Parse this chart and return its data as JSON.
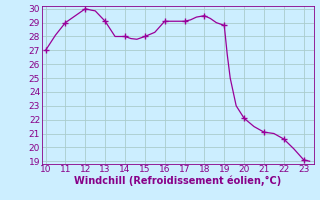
{
  "x": [
    10,
    10.5,
    11,
    11.5,
    12,
    12.3,
    12.5,
    13,
    13.5,
    14,
    14.3,
    14.6,
    15,
    15.5,
    16,
    16.5,
    17,
    17.3,
    17.6,
    18,
    18.15,
    18.3,
    18.6,
    19,
    19.15,
    19.3,
    19.6,
    20,
    20.5,
    21,
    21.5,
    22,
    22.5,
    23,
    23.3
  ],
  "y": [
    27.0,
    28.1,
    29.0,
    29.5,
    30.0,
    29.9,
    29.85,
    29.1,
    28.0,
    28.0,
    27.85,
    27.8,
    28.0,
    28.3,
    29.1,
    29.1,
    29.1,
    29.2,
    29.4,
    29.5,
    29.4,
    29.3,
    29.0,
    28.8,
    26.7,
    25.0,
    23.0,
    22.1,
    21.5,
    21.1,
    21.0,
    20.6,
    19.9,
    19.1,
    19.0
  ],
  "marker_x": [
    10,
    11,
    12,
    13,
    14,
    15,
    16,
    17,
    18,
    19,
    20,
    21,
    22,
    23
  ],
  "marker_y": [
    27.0,
    29.0,
    30.0,
    29.1,
    28.0,
    28.0,
    29.1,
    29.1,
    29.5,
    28.8,
    22.1,
    21.1,
    20.6,
    19.1
  ],
  "line_color": "#990099",
  "bg_color": "#cceeff",
  "grid_color": "#aacccc",
  "xlabel": "Windchill (Refroidissement éolien,°C)",
  "xlim": [
    9.8,
    23.5
  ],
  "ylim": [
    18.8,
    30.2
  ],
  "xticks": [
    10,
    11,
    12,
    13,
    14,
    15,
    16,
    17,
    18,
    19,
    20,
    21,
    22,
    23
  ],
  "yticks": [
    19,
    20,
    21,
    22,
    23,
    24,
    25,
    26,
    27,
    28,
    29,
    30
  ],
  "label_color": "#880088",
  "tick_color": "#880088",
  "font_size": 6.5,
  "xlabel_fontsize": 7.0
}
